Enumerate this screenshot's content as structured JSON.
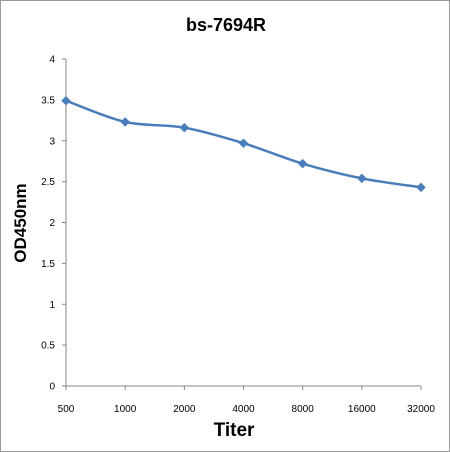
{
  "chart_data": {
    "type": "line",
    "title": "bs-7694R",
    "xlabel": "Titer",
    "ylabel": "OD450nm",
    "categories": [
      "500",
      "1000",
      "2000",
      "4000",
      "8000",
      "16000",
      "32000"
    ],
    "series": [
      {
        "values": [
          3.49,
          3.23,
          3.16,
          2.97,
          2.72,
          2.54,
          2.43
        ]
      }
    ],
    "ylim": [
      0,
      4
    ],
    "yticks": [
      "0",
      "0.5",
      "1",
      "1.5",
      "2",
      "2.5",
      "3",
      "3.5",
      "4"
    ],
    "grid": false,
    "legend": "none",
    "colors": {
      "line": "#4a7ebb",
      "axis": "#868686"
    }
  }
}
